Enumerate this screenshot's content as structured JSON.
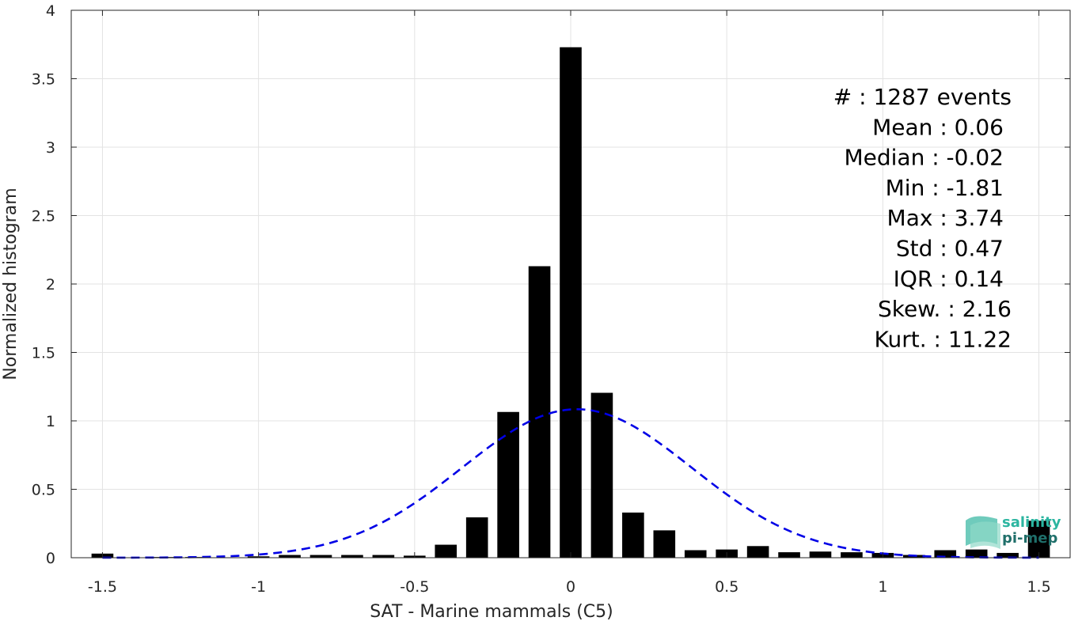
{
  "chart_data": {
    "type": "bar",
    "title": "",
    "xlabel": "SAT - Marine mammals (C5)",
    "ylabel": "Normalized histogram",
    "xlim": [
      -1.6,
      1.6
    ],
    "ylim": [
      0,
      4
    ],
    "xticks": [
      -1.5,
      -1,
      -0.5,
      0,
      0.5,
      1,
      1.5
    ],
    "yticks": [
      0,
      0.5,
      1,
      1.5,
      2,
      2.5,
      3,
      3.5,
      4
    ],
    "xtick_labels": [
      "-1.5",
      "-1",
      "-0.5",
      "0",
      "0.5",
      "1",
      "1.5"
    ],
    "ytick_labels": [
      "0",
      "0.5",
      "1",
      "1.5",
      "2",
      "2.5",
      "3",
      "3.5",
      "4"
    ],
    "grid": true,
    "bar_width": 0.07,
    "bar_color": "#000000",
    "bars": [
      {
        "x": -1.5,
        "y": 0.03
      },
      {
        "x": -1.3,
        "y": 0.005
      },
      {
        "x": -1.2,
        "y": 0.005
      },
      {
        "x": -1.0,
        "y": 0.01
      },
      {
        "x": -0.9,
        "y": 0.02
      },
      {
        "x": -0.8,
        "y": 0.02
      },
      {
        "x": -0.7,
        "y": 0.02
      },
      {
        "x": -0.6,
        "y": 0.02
      },
      {
        "x": -0.5,
        "y": 0.015
      },
      {
        "x": -0.4,
        "y": 0.095
      },
      {
        "x": -0.3,
        "y": 0.295
      },
      {
        "x": -0.2,
        "y": 1.065
      },
      {
        "x": -0.1,
        "y": 2.13
      },
      {
        "x": 0.0,
        "y": 3.73
      },
      {
        "x": 0.1,
        "y": 1.205
      },
      {
        "x": 0.2,
        "y": 0.33
      },
      {
        "x": 0.3,
        "y": 0.2
      },
      {
        "x": 0.4,
        "y": 0.055
      },
      {
        "x": 0.5,
        "y": 0.06
      },
      {
        "x": 0.6,
        "y": 0.085
      },
      {
        "x": 0.7,
        "y": 0.04
      },
      {
        "x": 0.8,
        "y": 0.045
      },
      {
        "x": 0.9,
        "y": 0.04
      },
      {
        "x": 1.0,
        "y": 0.035
      },
      {
        "x": 1.1,
        "y": 0.02
      },
      {
        "x": 1.2,
        "y": 0.055
      },
      {
        "x": 1.3,
        "y": 0.06
      },
      {
        "x": 1.4,
        "y": 0.035
      },
      {
        "x": 1.5,
        "y": 0.27
      }
    ],
    "fit_curve": {
      "type": "gaussian",
      "mean": 0.02,
      "std": 0.3677,
      "peak": 1.085,
      "x_range": [
        -1.5,
        1.5
      ],
      "color": "#0000e6",
      "style": "dashed"
    },
    "stats": [
      "#  : 1287 events",
      "Mean : 0.06",
      "Median : -0.02",
      "Min : -1.81",
      "Max : 3.74",
      "Std : 0.47",
      "IQR : 0.14",
      "Skew. : 2.16",
      "Kurt. : 11.22"
    ]
  },
  "logo": {
    "line1": "salinity",
    "line2": "pi-mep",
    "color1": "#2bb5a0",
    "color2": "#1f6f6a"
  }
}
